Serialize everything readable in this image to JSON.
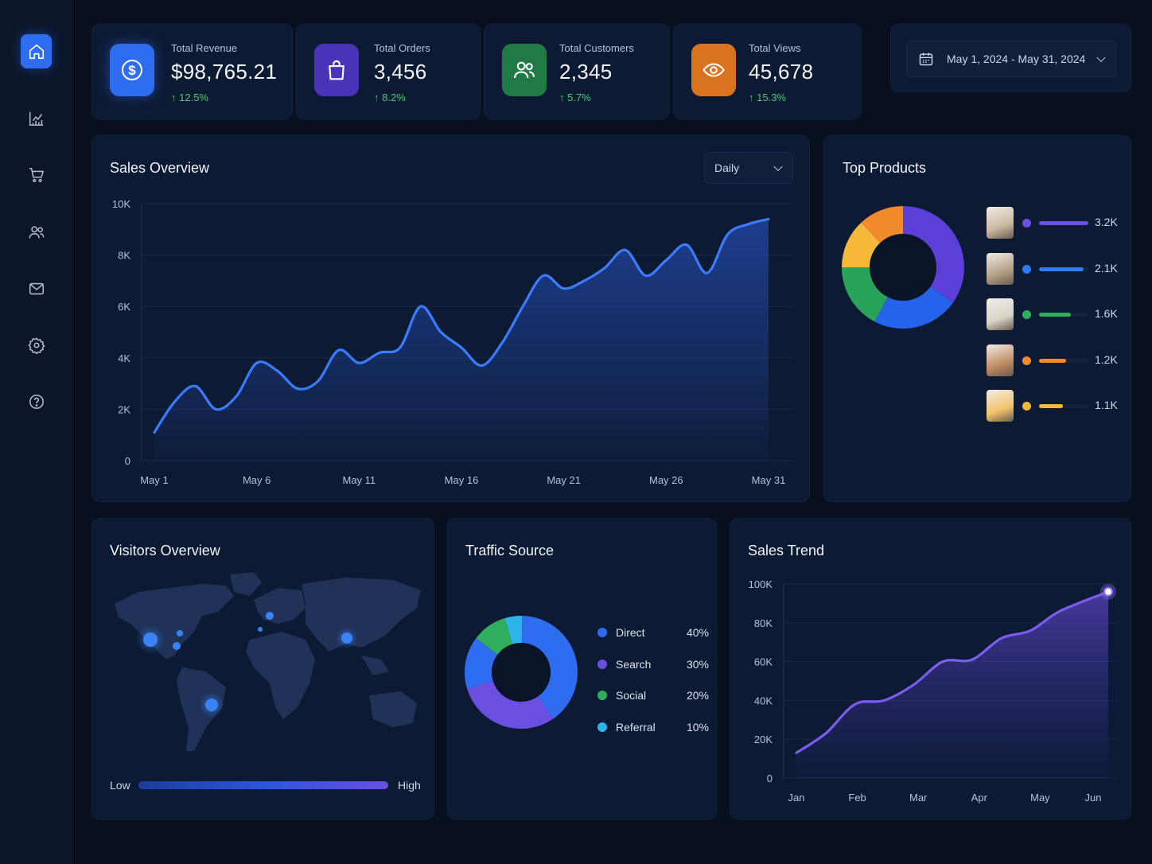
{
  "sidebar": {
    "items": [
      {
        "name": "home",
        "active": true
      },
      {
        "name": "analytics"
      },
      {
        "name": "cart"
      },
      {
        "name": "users"
      },
      {
        "name": "mail"
      },
      {
        "name": "settings"
      },
      {
        "name": "help"
      }
    ]
  },
  "stats": [
    {
      "label": "Total Revenue",
      "value": "$98,765.21",
      "delta": "12.5%",
      "color": "#2f6df0",
      "icon": "dollar-icon"
    },
    {
      "label": "Total Orders",
      "value": "3,456",
      "delta": "8.2%",
      "color": "#4a33b8",
      "icon": "shopping-bag-icon"
    },
    {
      "label": "Total Customers",
      "value": "2,345",
      "delta": "5.7%",
      "color": "#1f7a45",
      "icon": "users-icon"
    },
    {
      "label": "Total Views",
      "value": "45,678",
      "delta": "15.3%",
      "color": "#d9731f",
      "icon": "eye-icon"
    }
  ],
  "date_range": {
    "value": "May 1, 2024 - May 31, 2024"
  },
  "sales_overview": {
    "title": "Sales Overview",
    "period": "Daily"
  },
  "top_products": {
    "title": "Top Products",
    "items": [
      {
        "value": "3.2K",
        "color": "#6a4fe0",
        "fill": 1.0
      },
      {
        "value": "2.1K",
        "color": "#2f7af5",
        "fill": 0.9
      },
      {
        "value": "1.6K",
        "color": "#2fae5e",
        "fill": 0.65
      },
      {
        "value": "1.2K",
        "color": "#f08a2a",
        "fill": 0.55
      },
      {
        "value": "1.1K",
        "color": "#f5b93a",
        "fill": 0.48
      }
    ]
  },
  "visitors": {
    "title": "Visitors Overview",
    "low": "Low",
    "high": "High"
  },
  "traffic": {
    "title": "Traffic Source"
  },
  "sales_trend": {
    "title": "Sales Trend"
  },
  "chart_data": [
    {
      "type": "area",
      "title": "Sales Overview",
      "x": [
        "May 1",
        "May 2",
        "May 3",
        "May 4",
        "May 5",
        "May 6",
        "May 7",
        "May 8",
        "May 9",
        "May 10",
        "May 11",
        "May 12",
        "May 13",
        "May 14",
        "May 15",
        "May 16",
        "May 17",
        "May 18",
        "May 19",
        "May 20",
        "May 21",
        "May 22",
        "May 23",
        "May 24",
        "May 25",
        "May 26",
        "May 27",
        "May 28",
        "May 29",
        "May 30",
        "May 31"
      ],
      "values": [
        1100,
        2300,
        2900,
        2000,
        2500,
        3800,
        3500,
        2800,
        3100,
        4300,
        3800,
        4200,
        4400,
        6000,
        5000,
        4400,
        3700,
        4600,
        6000,
        7200,
        6700,
        7000,
        7500,
        8200,
        7200,
        7800,
        8400,
        7300,
        8800,
        9200,
        9400
      ],
      "x_tick_labels": [
        "May 1",
        "May 6",
        "May 11",
        "May 16",
        "May 21",
        "May 26",
        "May 31"
      ],
      "y_tick_labels": [
        "0",
        "2K",
        "4K",
        "6K",
        "8K",
        "10K"
      ],
      "ylim": [
        0,
        10000
      ],
      "grid": true
    },
    {
      "type": "pie",
      "title": "Top Products",
      "labels": [
        "",
        "",
        "",
        "",
        ""
      ],
      "values": [
        3.2,
        2.1,
        1.6,
        1.2,
        1.1
      ],
      "colors": [
        "#5b3fd6",
        "#2563eb",
        "#27a35a",
        "#f5b93a",
        "#f08a2a"
      ]
    },
    {
      "type": "pie",
      "title": "Traffic Source",
      "labels": [
        "Direct",
        "Search",
        "Social",
        "Referral"
      ],
      "values": [
        40,
        30,
        20,
        10
      ],
      "colors": [
        "#2f6df0",
        "#6a4fe0",
        "#2fae5e",
        "#2bb5e8"
      ]
    },
    {
      "type": "area",
      "title": "Sales Trend",
      "categories": [
        "Jan",
        "Feb",
        "Mar",
        "Apr",
        "May",
        "Jun"
      ],
      "x": [
        0,
        0.5,
        1,
        1.5,
        2,
        2.5,
        3,
        3.5,
        4,
        4.5,
        5
      ],
      "values": [
        13000,
        23000,
        38000,
        40000,
        48000,
        60000,
        61000,
        72000,
        76000,
        86000,
        96000
      ],
      "y_tick_labels": [
        "0",
        "20K",
        "40K",
        "60K",
        "80K",
        "100K"
      ],
      "ylim": [
        0,
        100000
      ],
      "grid": true
    }
  ]
}
